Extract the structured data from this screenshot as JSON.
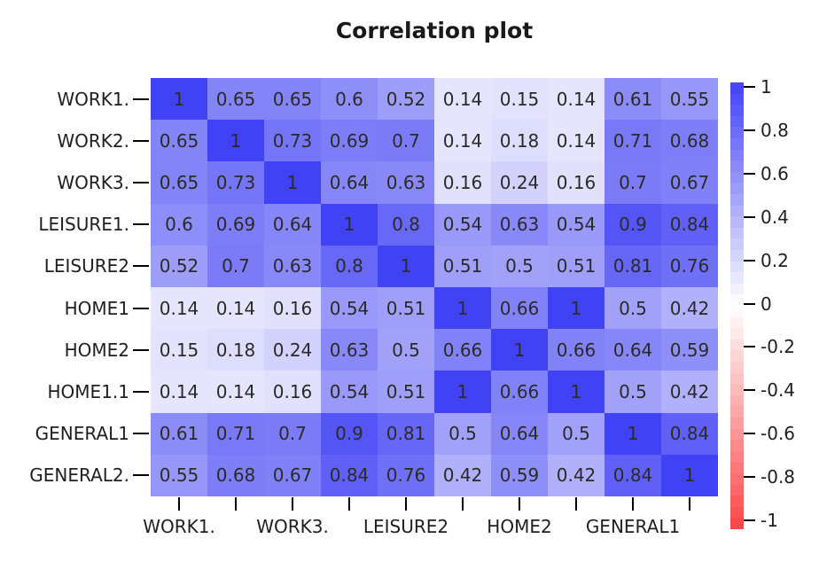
{
  "title": "Correlation plot",
  "chart_data": {
    "type": "heatmap",
    "title": "Correlation plot",
    "row_labels": [
      "WORK1.",
      "WORK2.",
      "WORK3.",
      "LEISURE1.",
      "LEISURE2",
      "HOME1",
      "HOME2",
      "HOME1.1",
      "GENERAL1",
      "GENERAL2."
    ],
    "col_labels": [
      "WORK1.",
      "WORK2.",
      "WORK3.",
      "LEISURE1.",
      "LEISURE2",
      "HOME1",
      "HOME2",
      "HOME1.1",
      "GENERAL1",
      "GENERAL2."
    ],
    "x_axis_visible_labels": [
      "WORK1.",
      "WORK3.",
      "LEISURE2",
      "HOME2",
      "GENERAL1"
    ],
    "x_axis_visible_label_columns": [
      0,
      2,
      4,
      6,
      8
    ],
    "matrix": [
      [
        1,
        0.65,
        0.65,
        0.6,
        0.52,
        0.14,
        0.15,
        0.14,
        0.61,
        0.55
      ],
      [
        0.65,
        1,
        0.73,
        0.69,
        0.7,
        0.14,
        0.18,
        0.14,
        0.71,
        0.68
      ],
      [
        0.65,
        0.73,
        1,
        0.64,
        0.63,
        0.16,
        0.24,
        0.16,
        0.7,
        0.67
      ],
      [
        0.6,
        0.69,
        0.64,
        1,
        0.8,
        0.54,
        0.63,
        0.54,
        0.9,
        0.84
      ],
      [
        0.52,
        0.7,
        0.63,
        0.8,
        1,
        0.51,
        0.5,
        0.51,
        0.81,
        0.76
      ],
      [
        0.14,
        0.14,
        0.16,
        0.54,
        0.51,
        1,
        0.66,
        1,
        0.5,
        0.42
      ],
      [
        0.15,
        0.18,
        0.24,
        0.63,
        0.5,
        0.66,
        1,
        0.66,
        0.64,
        0.59
      ],
      [
        0.14,
        0.14,
        0.16,
        0.54,
        0.51,
        1,
        0.66,
        1,
        0.5,
        0.42
      ],
      [
        0.61,
        0.71,
        0.7,
        0.9,
        0.81,
        0.5,
        0.64,
        0.5,
        1,
        0.84
      ],
      [
        0.55,
        0.68,
        0.67,
        0.84,
        0.76,
        0.42,
        0.59,
        0.42,
        0.84,
        1
      ]
    ],
    "colorbar": {
      "min": -1,
      "max": 1,
      "tick_labels": [
        "1",
        "0.8",
        "0.6",
        "0.4",
        "0.2",
        "0",
        "-0.2",
        "-0.4",
        "-0.6",
        "-0.8",
        "-1"
      ],
      "segments": 40,
      "positive_end_color": "#4242f5",
      "zero_color": "#ffffff",
      "negative_end_color": "#fa4646"
    },
    "colors": {
      "cell_text": "#2a2a2a",
      "axis_text": "#1f1f1f",
      "border": "#1a1a1a",
      "background": "#ffffff"
    },
    "legend_position": "right",
    "grid": false
  }
}
